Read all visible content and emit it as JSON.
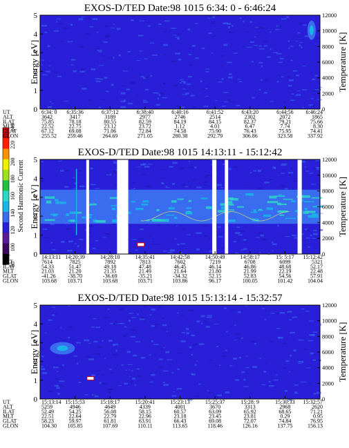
{
  "colors": {
    "background": "#2a1fd8",
    "band_light_blue": "#3a6cf0",
    "band_cyan": "#19b5e6",
    "band_aqua": "#2dd6c8",
    "gap_white": "#ffffff",
    "trace_yellow": "#f0f060"
  },
  "colorbar": {
    "label": "Second Harmonic Current",
    "ticks": [
      "80",
      "100",
      "120",
      "140",
      "160",
      "180",
      "200",
      "220",
      "240"
    ],
    "colors": [
      "#000000",
      "#3a0a5a",
      "#5a1a9a",
      "#2a1fd8",
      "#3a6cf0",
      "#19b5e6",
      "#2dd6c8",
      "#20c040",
      "#a0e020",
      "#f0f000",
      "#ff9000",
      "#ff2000",
      "#d00000"
    ]
  },
  "chart_data": [
    {
      "type": "heatmap",
      "title": "EXOS-D/TED   Date:98 1015   6:34: 0 - 6:46:24",
      "ylabel": "Energy [eV]",
      "y2label": "Temperature [K]",
      "ylim": [
        0,
        5
      ],
      "y2lim": [
        0,
        12000
      ],
      "yticks": [
        "0",
        "1",
        "2",
        "3",
        "4",
        "5"
      ],
      "y2ticks": [
        "0",
        "2000",
        "4000",
        "6000",
        "8000",
        "10000",
        "12000"
      ],
      "row_labels": [
        "UT",
        "ALT",
        "ILAT",
        "MLT",
        "GLAT",
        "GLON"
      ],
      "columns": [
        [
          "6:34: 0",
          "3642",
          "75.85",
          "22.52",
          "67.12",
          "255.52"
        ],
        [
          "6:35:36",
          "3417",
          "78.18",
          "22.75",
          "69.08",
          "259.46"
        ],
        [
          "6:37:12",
          "3189",
          "80.55",
          "23.12",
          "71.06",
          "264.69"
        ],
        [
          "6:38:40",
          "2977",
          "82.59",
          "23.72",
          "72.84",
          "271.05"
        ],
        [
          "6:40:16",
          "2746",
          "84.19",
          "1.12",
          "74.58",
          "280.38"
        ],
        [
          "6:41:52",
          "2514",
          "84.15",
          "4.01",
          "75.90",
          "292.79"
        ],
        [
          "6:43:20",
          "2302",
          "82.37",
          "6.47",
          "76.43",
          "306.86"
        ],
        [
          "6:44:56",
          "2072",
          "79.21",
          "7.74",
          "75.95",
          "323.58"
        ],
        [
          "6:46:24",
          "1865",
          "75.66",
          "8.30",
          "74.41",
          "337.92"
        ]
      ],
      "data_gaps": [],
      "features": [
        {
          "name": "high-energy-blob",
          "x_frac": 0.97,
          "energy": 4.2,
          "level": "light"
        }
      ],
      "band": null
    },
    {
      "type": "heatmap",
      "title": "EXOS-D/TED   Date:98 1015   14:13:11 - 15:12:42",
      "ylabel": "Energy [eV]",
      "y2label": "Temperature [K]",
      "ylim": [
        0,
        5
      ],
      "y2lim": [
        0,
        12000
      ],
      "yticks": [
        "0",
        "1",
        "2",
        "3",
        "4",
        "5"
      ],
      "y2ticks": [
        "0",
        "2000",
        "4000",
        "6000",
        "8000",
        "10000",
        "12000"
      ],
      "row_labels": [
        "UT",
        "ALT",
        "ILAT",
        "MLT",
        "GLAT",
        "GLON"
      ],
      "columns": [
        [
          "14:13:11",
          "7614",
          "54.33",
          "21.03",
          "-41.26",
          "103.68"
        ],
        [
          "14:20:39",
          "7825",
          "51.47",
          "21.20",
          "-38.70",
          "103.71"
        ],
        [
          "14:28:10",
          "7892",
          "49.18",
          "21.35",
          "-36.69",
          "103.68"
        ],
        [
          "14:35:41",
          "7813",
          "47.48",
          "21.49",
          "-35.21",
          "103.71"
        ],
        [
          "14:42:58",
          "7602",
          "46.45",
          "21.64",
          "-34.32",
          "103.86"
        ],
        [
          "14:50:49",
          "7219",
          "46.14",
          "21.80",
          "52.15",
          "96.17"
        ],
        [
          "14:58:17",
          "6708",
          "46.86",
          "21.99",
          "52.83",
          "100.05"
        ],
        [
          "15: 5:17",
          "6099",
          "48.68",
          "22.19",
          "54.56",
          "101.42"
        ],
        [
          "15:12:42",
          "5321",
          "52.17",
          "22.48",
          "57.91",
          "104.04"
        ]
      ],
      "data_gaps": [
        [
          0.165,
          0.175
        ],
        [
          0.275,
          0.315
        ],
        [
          0.615,
          0.63
        ],
        [
          0.66,
          0.672
        ],
        [
          0.92,
          0.935
        ]
      ],
      "features": [
        {
          "name": "spike-trace",
          "x_frac": 0.13,
          "energy": 4.5,
          "level": "cyan"
        },
        {
          "name": "spike-trace",
          "x_frac": 0.36,
          "energy": 0.5,
          "level": "white"
        }
      ],
      "band": {
        "energy_center": 2.5,
        "energy_halfwidth": 0.9
      }
    },
    {
      "type": "heatmap",
      "title": "EXOS-D/TED   Date:98 1015   15:13:14 - 15:32:57",
      "ylabel": "Energy [eV]",
      "y2label": "Temperature [K]",
      "ylim": [
        0,
        5
      ],
      "y2lim": [
        0,
        12000
      ],
      "yticks": [
        "0",
        "1",
        "2",
        "3",
        "4",
        "5"
      ],
      "y2ticks": [
        "0",
        "2000",
        "4000",
        "6000",
        "8000",
        "10000",
        "12000"
      ],
      "row_labels": [
        "UT",
        "ALT",
        "ILAT",
        "MLT",
        "GLAT",
        "GLON"
      ],
      "columns": [
        [
          "15:13:14",
          "5259",
          "52.49",
          "22.51",
          "58.23",
          "104.30"
        ],
        [
          "15:15:53",
          "4946",
          "54.25",
          "22.64",
          "59.97",
          "105.85"
        ],
        [
          "15:18:17",
          "4649",
          "56.08",
          "22.79",
          "61.81",
          "107.69"
        ],
        [
          "15:20:41",
          "4339",
          "58.15",
          "22.96",
          "63.91",
          "110.11"
        ],
        [
          "15:23:13",
          "4001",
          "60.57",
          "23.18",
          "66.43",
          "113.65"
        ],
        [
          "15:25:37",
          "3670",
          "63.09",
          "23.45",
          "69.08",
          "118.46"
        ],
        [
          "15:28: 9",
          "3313",
          "65.92",
          "23.81",
          "72.07",
          "126.16"
        ],
        [
          "15:30:33",
          "2968",
          "68.65",
          "0.29",
          "74.84",
          "137.75"
        ],
        [
          "15:32:57",
          "2620",
          "71.21",
          "0.95",
          "76.95",
          "156.13"
        ]
      ],
      "data_gaps": [],
      "features": [
        {
          "name": "low-energy-enhancement",
          "x_frac": 0.08,
          "energy": 2.7,
          "level": "light"
        },
        {
          "name": "hot-spot",
          "x_frac": 0.18,
          "energy": 1.1,
          "level": "white"
        }
      ],
      "band": null
    }
  ]
}
